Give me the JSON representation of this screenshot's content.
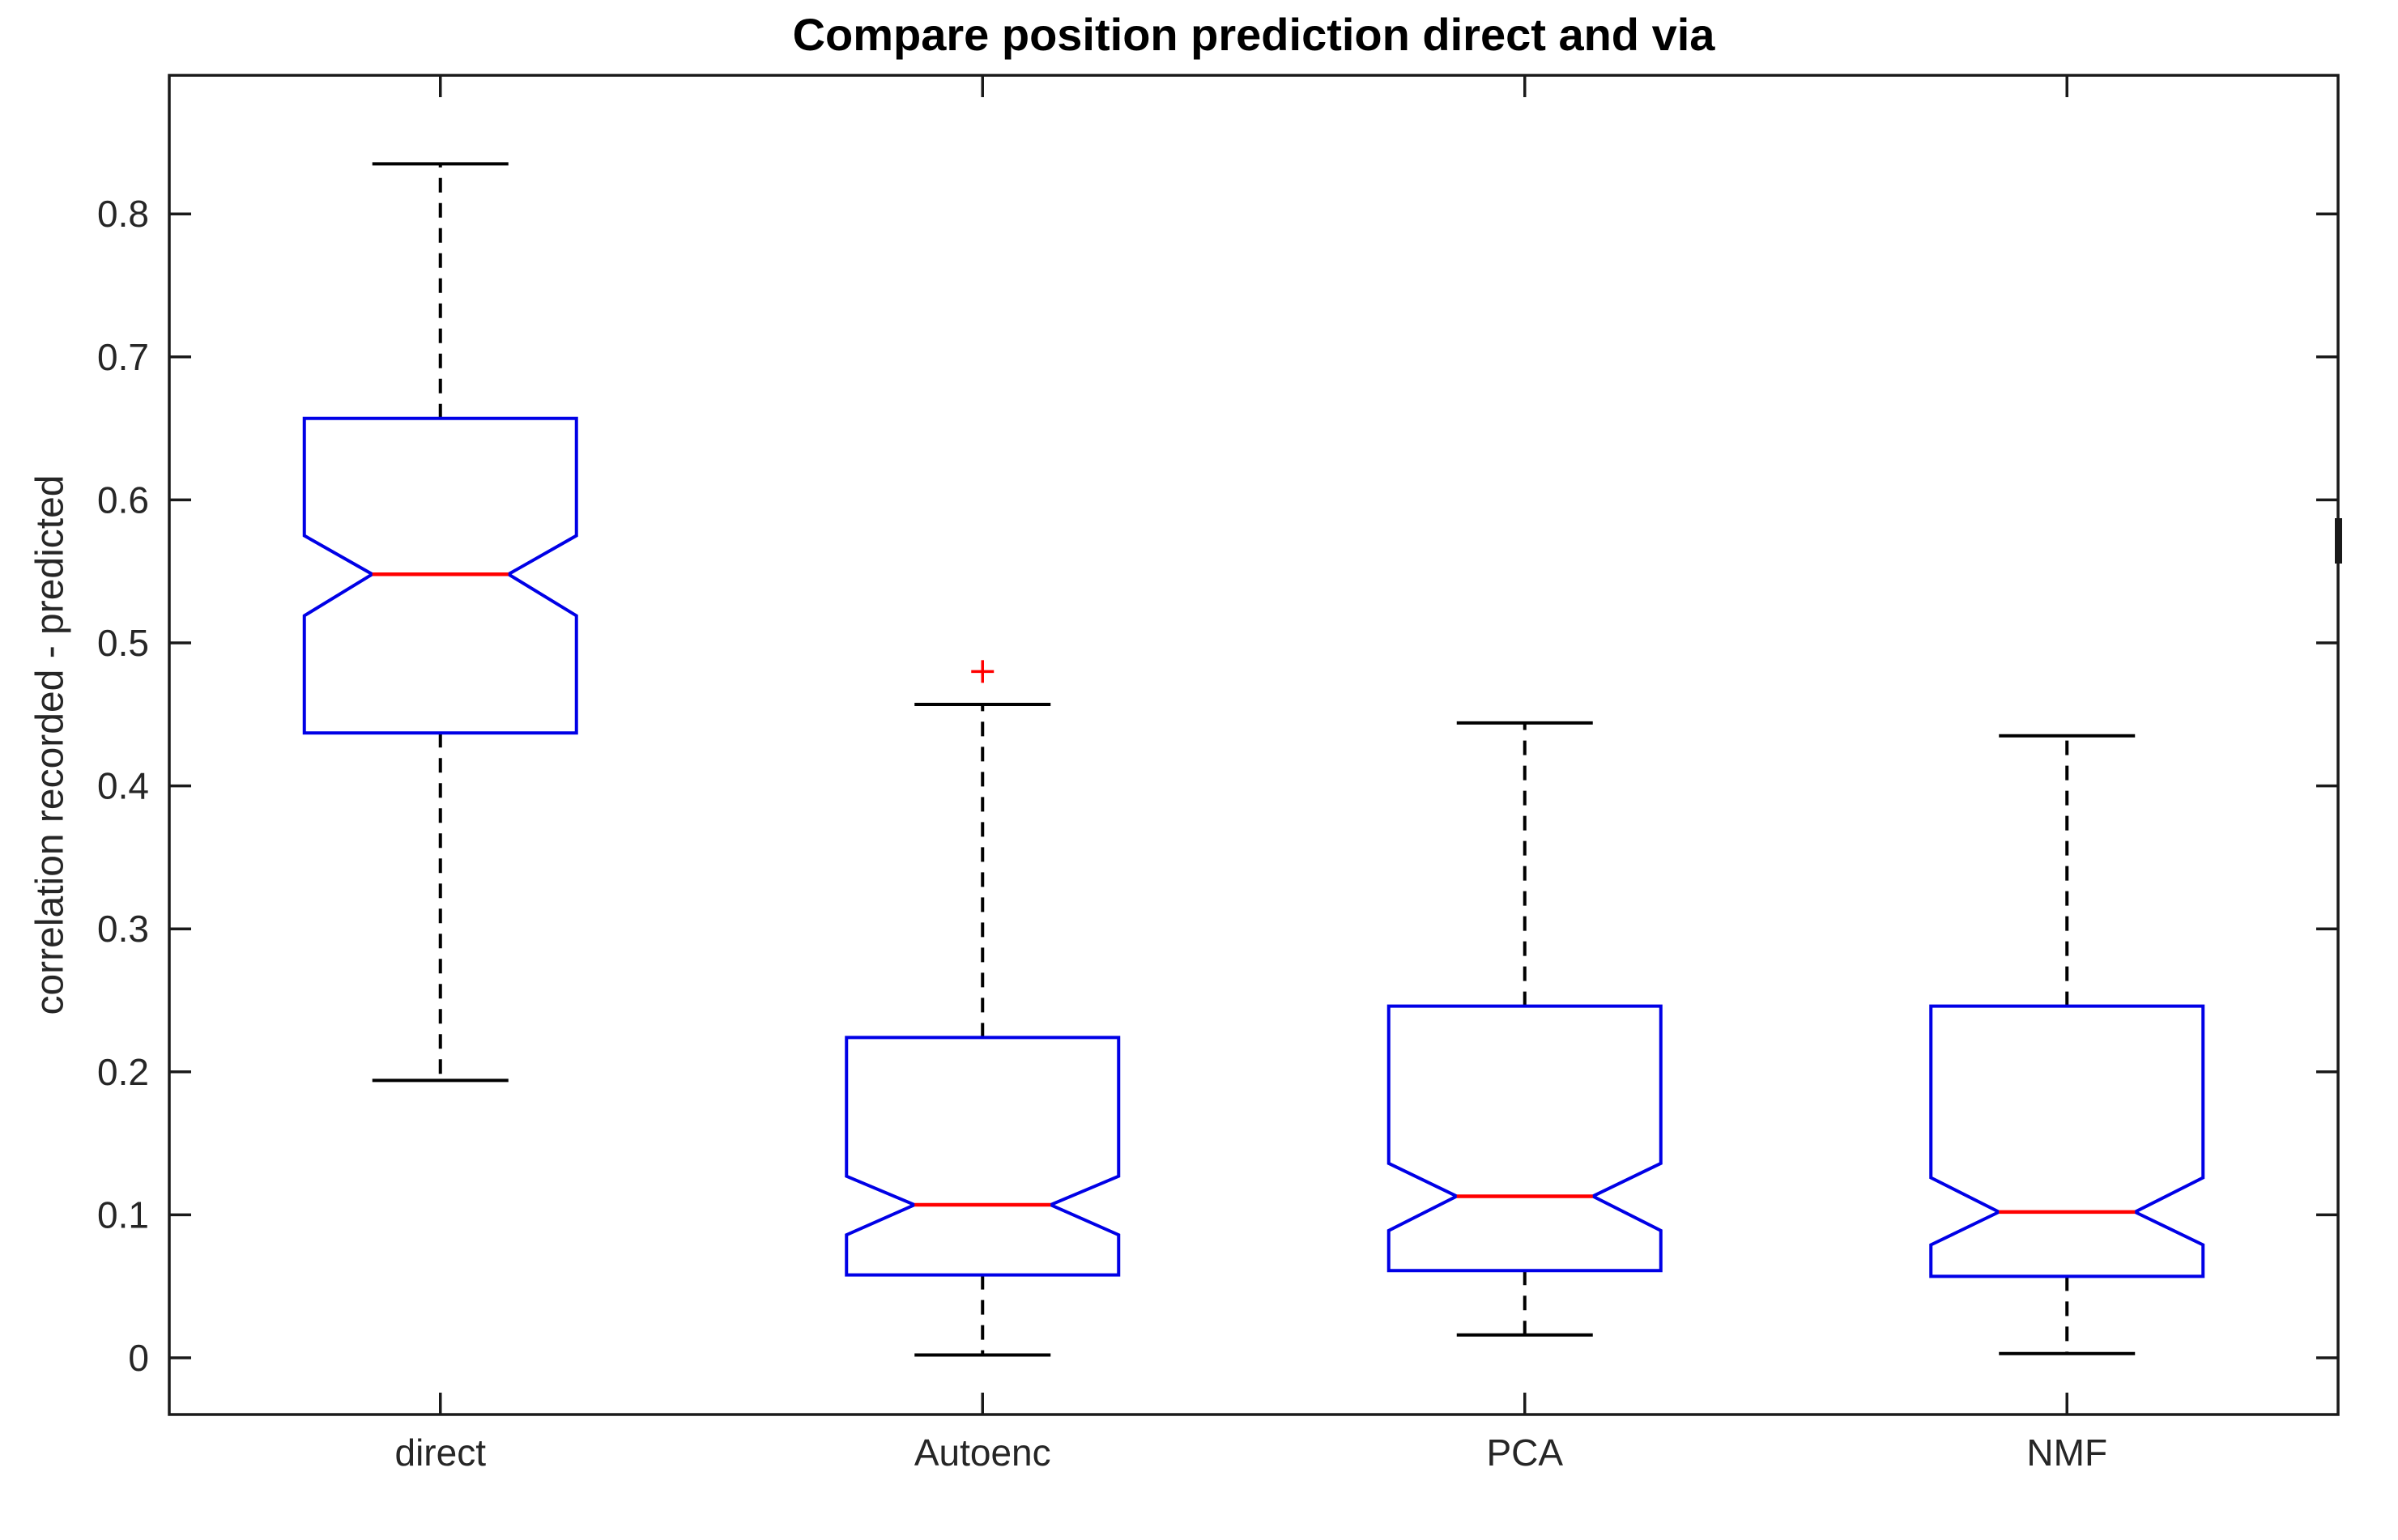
{
  "title": "Compare position prediction direct and via",
  "ylabel": "correlation recorded - predicted",
  "chart_data": {
    "type": "box",
    "notched": true,
    "grid": false,
    "legend_position": "none",
    "categories": [
      "direct",
      "Autoenc",
      "PCA",
      "NMF"
    ],
    "series": [
      {
        "name": "direct",
        "whisker_low": 0.194,
        "q1": 0.437,
        "notch_low": 0.519,
        "median": 0.548,
        "notch_high": 0.575,
        "q3": 0.657,
        "whisker_high": 0.835,
        "outliers": []
      },
      {
        "name": "Autoenc",
        "whisker_low": 0.002,
        "q1": 0.058,
        "notch_low": 0.086,
        "median": 0.107,
        "notch_high": 0.127,
        "q3": 0.224,
        "whisker_high": 0.457,
        "outliers": [
          0.48
        ]
      },
      {
        "name": "PCA",
        "whisker_low": 0.016,
        "q1": 0.061,
        "notch_low": 0.089,
        "median": 0.113,
        "notch_high": 0.136,
        "q3": 0.246,
        "whisker_high": 0.444,
        "outliers": []
      },
      {
        "name": "NMF",
        "whisker_low": 0.003,
        "q1": 0.057,
        "notch_low": 0.079,
        "median": 0.102,
        "notch_high": 0.126,
        "q3": 0.246,
        "whisker_high": 0.435,
        "outliers": []
      }
    ],
    "yticks": [
      0,
      0.1,
      0.2,
      0.3,
      0.4,
      0.5,
      0.6,
      0.7,
      0.8
    ],
    "ytick_labels": [
      "0",
      "0.1",
      "0.2",
      "0.3",
      "0.4",
      "0.5",
      "0.6",
      "0.7",
      "0.8"
    ],
    "ylim": [
      -0.04,
      0.897
    ],
    "xlabel": "",
    "colors": {
      "box": "#0000e6",
      "median": "#ff0000",
      "outlier": "#ff0000",
      "whisker": "#000000",
      "axis": "#1a1a1a",
      "tick_text": "#262626",
      "title_text": "#000000"
    }
  }
}
